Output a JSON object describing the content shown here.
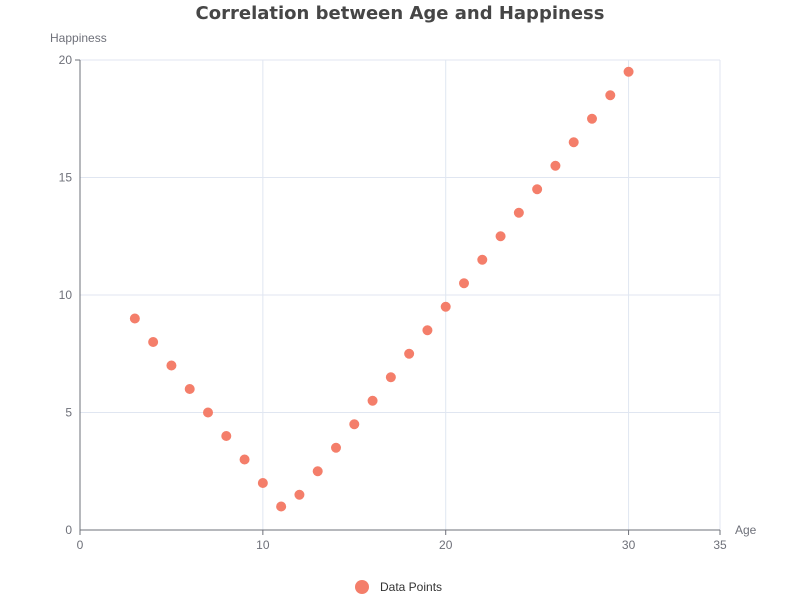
{
  "chart_data": {
    "type": "scatter",
    "title": "Correlation between Age and Happiness",
    "xlabel": "Age",
    "ylabel": "Happiness",
    "xlim": [
      0,
      35
    ],
    "ylim": [
      0,
      20
    ],
    "xticks": [
      0,
      10,
      20,
      30,
      35
    ],
    "yticks": [
      0,
      5,
      10,
      15,
      20
    ],
    "grid": true,
    "legend_position": "bottom-center",
    "series": [
      {
        "name": "Data Points",
        "color": "#f47e6a",
        "points": [
          {
            "x": 3,
            "y": 9
          },
          {
            "x": 4,
            "y": 8
          },
          {
            "x": 5,
            "y": 7
          },
          {
            "x": 6,
            "y": 6
          },
          {
            "x": 7,
            "y": 5
          },
          {
            "x": 8,
            "y": 4
          },
          {
            "x": 9,
            "y": 3
          },
          {
            "x": 10,
            "y": 2
          },
          {
            "x": 11,
            "y": 1
          },
          {
            "x": 12,
            "y": 1.5
          },
          {
            "x": 13,
            "y": 2.5
          },
          {
            "x": 14,
            "y": 3.5
          },
          {
            "x": 15,
            "y": 4.5
          },
          {
            "x": 16,
            "y": 5.5
          },
          {
            "x": 17,
            "y": 6.5
          },
          {
            "x": 18,
            "y": 7.5
          },
          {
            "x": 19,
            "y": 8.5
          },
          {
            "x": 20,
            "y": 9.5
          },
          {
            "x": 21,
            "y": 10.5
          },
          {
            "x": 22,
            "y": 11.5
          },
          {
            "x": 23,
            "y": 12.5
          },
          {
            "x": 24,
            "y": 13.5
          },
          {
            "x": 25,
            "y": 14.5
          },
          {
            "x": 26,
            "y": 15.5
          },
          {
            "x": 27,
            "y": 16.5
          },
          {
            "x": 28,
            "y": 17.5
          },
          {
            "x": 29,
            "y": 18.5
          },
          {
            "x": 30,
            "y": 19.5
          }
        ]
      }
    ]
  }
}
